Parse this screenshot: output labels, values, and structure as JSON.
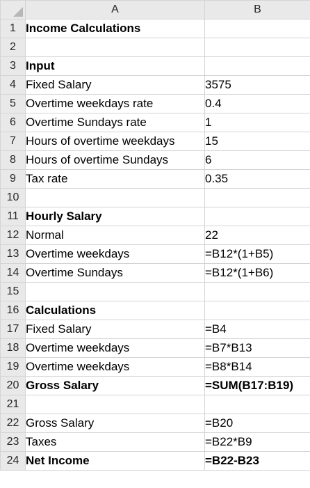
{
  "columns": {
    "a": "A",
    "b": "B"
  },
  "rows": [
    {
      "num": "1",
      "a": "Income Calculations",
      "b": "",
      "a_bold": true,
      "b_bold": false
    },
    {
      "num": "2",
      "a": "",
      "b": "",
      "a_bold": false,
      "b_bold": false
    },
    {
      "num": "3",
      "a": "Input",
      "b": "",
      "a_bold": true,
      "b_bold": false
    },
    {
      "num": "4",
      "a": "Fixed Salary",
      "b": "3575",
      "a_bold": false,
      "b_bold": false
    },
    {
      "num": "5",
      "a": "Overtime weekdays rate",
      "b": "0.4",
      "a_bold": false,
      "b_bold": false
    },
    {
      "num": "6",
      "a": "Overtime Sundays rate",
      "b": "1",
      "a_bold": false,
      "b_bold": false
    },
    {
      "num": "7",
      "a": "Hours of overtime weekdays",
      "b": "15",
      "a_bold": false,
      "b_bold": false
    },
    {
      "num": "8",
      "a": "Hours of overtime Sundays",
      "b": "6",
      "a_bold": false,
      "b_bold": false
    },
    {
      "num": "9",
      "a": "Tax rate",
      "b": "0.35",
      "a_bold": false,
      "b_bold": false
    },
    {
      "num": "10",
      "a": "",
      "b": "",
      "a_bold": false,
      "b_bold": false
    },
    {
      "num": "11",
      "a": "Hourly Salary",
      "b": "",
      "a_bold": true,
      "b_bold": false
    },
    {
      "num": "12",
      "a": "Normal",
      "b": "22",
      "a_bold": false,
      "b_bold": false
    },
    {
      "num": "13",
      "a": "Overtime weekdays",
      "b": "=B12*(1+B5)",
      "a_bold": false,
      "b_bold": false
    },
    {
      "num": "14",
      "a": "Overtime Sundays",
      "b": "=B12*(1+B6)",
      "a_bold": false,
      "b_bold": false
    },
    {
      "num": "15",
      "a": "",
      "b": "",
      "a_bold": false,
      "b_bold": false
    },
    {
      "num": "16",
      "a": "Calculations",
      "b": "",
      "a_bold": true,
      "b_bold": false
    },
    {
      "num": "17",
      "a": "Fixed Salary",
      "b": "=B4",
      "a_bold": false,
      "b_bold": false
    },
    {
      "num": "18",
      "a": "Overtime weekdays",
      "b": "=B7*B13",
      "a_bold": false,
      "b_bold": false
    },
    {
      "num": "19",
      "a": "Overtime weekdays",
      "b": "=B8*B14",
      "a_bold": false,
      "b_bold": false
    },
    {
      "num": "20",
      "a": "Gross Salary",
      "b": "=SUM(B17:B19)",
      "a_bold": true,
      "b_bold": true
    },
    {
      "num": "21",
      "a": "",
      "b": "",
      "a_bold": false,
      "b_bold": false
    },
    {
      "num": "22",
      "a": "Gross Salary",
      "b": "=B20",
      "a_bold": false,
      "b_bold": false
    },
    {
      "num": "23",
      "a": "Taxes",
      "b": "=B22*B9",
      "a_bold": false,
      "b_bold": false
    },
    {
      "num": "24",
      "a": "Net Income",
      "b": "=B22-B23",
      "a_bold": true,
      "b_bold": true
    }
  ],
  "colors": {
    "header_bg": "#e9e9e9",
    "gridline": "#d4d4d4"
  }
}
